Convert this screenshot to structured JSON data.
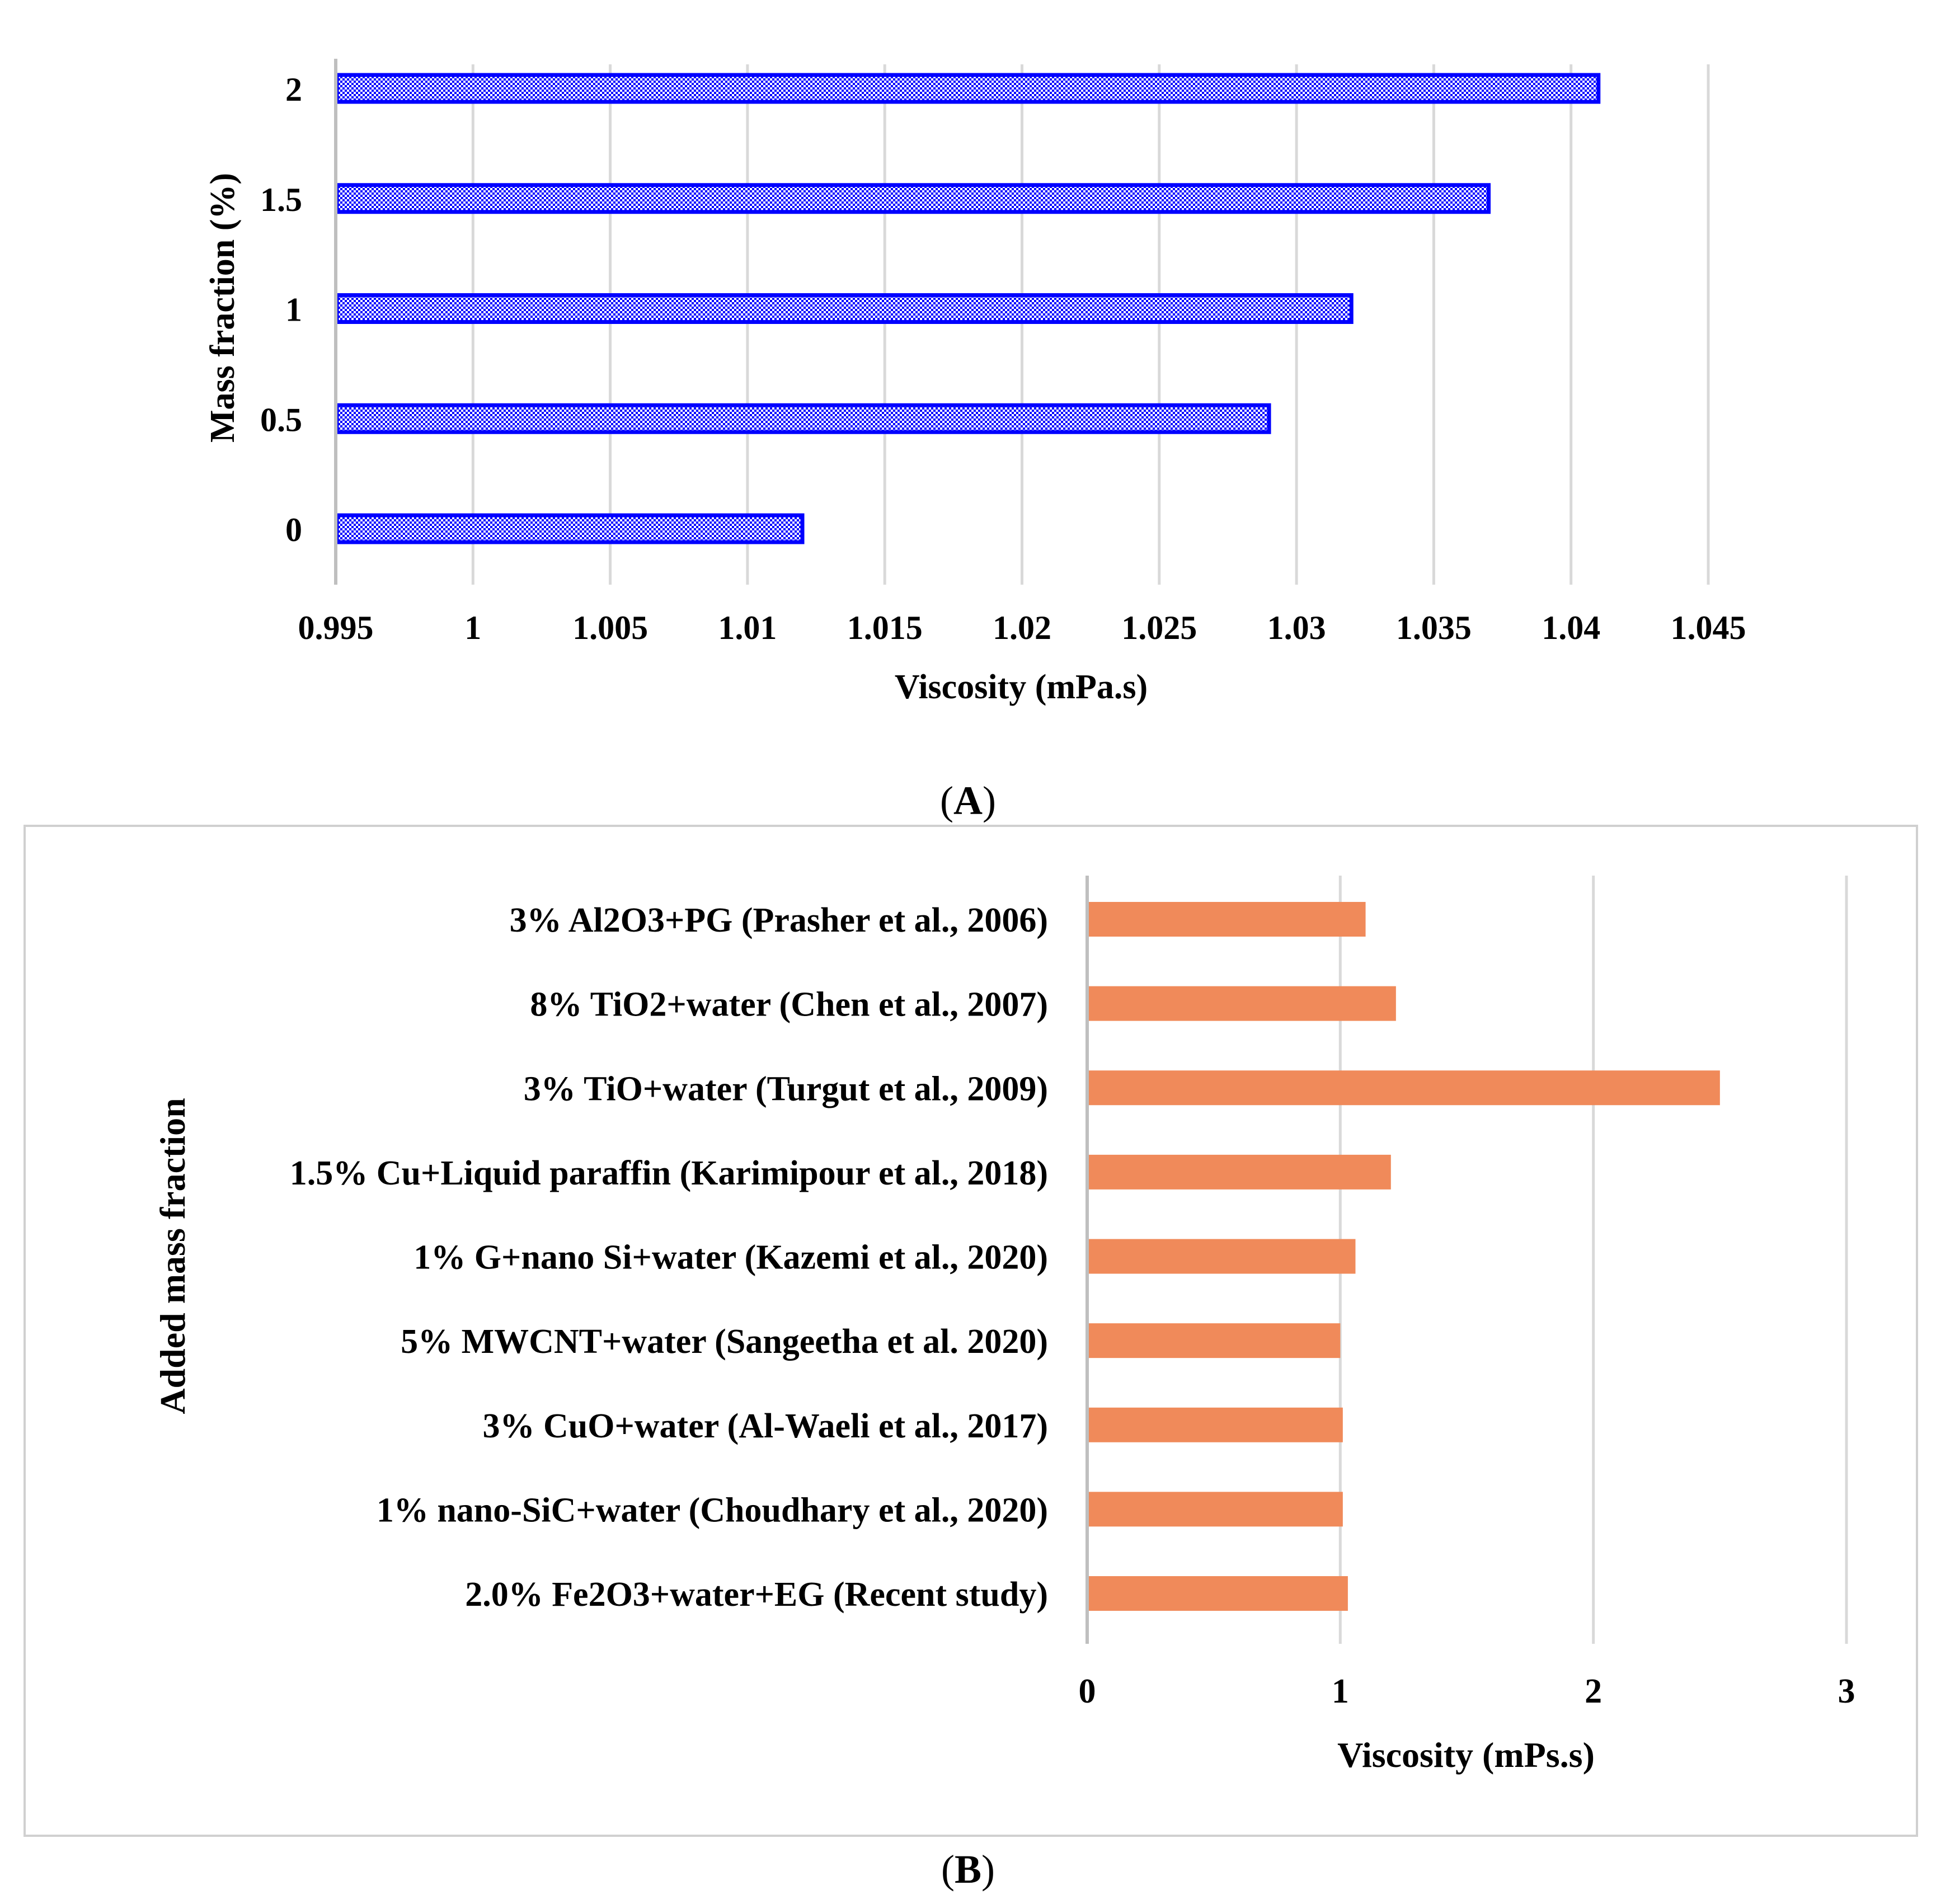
{
  "chart_data": [
    {
      "panel": "A",
      "type": "bar",
      "orientation": "horizontal",
      "categories": [
        "0",
        "0.5",
        "1",
        "1.5",
        "2"
      ],
      "values": [
        1.012,
        1.029,
        1.032,
        1.037,
        1.041
      ],
      "xlabel": "Viscosity (mPa.s)",
      "ylabel": "Mass fraction (%)",
      "xlim": [
        0.995,
        1.045
      ],
      "xticks": [
        "0.995",
        "1",
        "1.005",
        "1.01",
        "1.015",
        "1.02",
        "1.025",
        "1.03",
        "1.035",
        "1.04",
        "1.045"
      ],
      "grid": true,
      "bar_fill": "#ffffff",
      "bar_pattern": "#0000ff",
      "bar_stroke": "#0000ff",
      "caption_open": "(",
      "caption_letter": "A",
      "caption_close": ")"
    },
    {
      "panel": "B",
      "type": "bar",
      "orientation": "horizontal",
      "categories": [
        "2.0% Fe2O3+water+EG (Recent study)",
        "1% nano-SiC+water (Choudhary et al., 2020)",
        "3% CuO+water (Al-Waeli et al., 2017)",
        "5% MWCNT+water (Sangeetha et al. 2020)",
        "1% G+nano Si+water (Kazemi et al., 2020)",
        "1.5% Cu+Liquid paraffin (Karimipour et al., 2018)",
        "3% TiO+water (Turgut et al., 2009)",
        "8% TiO2+water (Chen et al., 2007)",
        "3% Al2O3+PG (Prasher et al., 2006)"
      ],
      "values": [
        1.03,
        1.01,
        1.01,
        1.0,
        1.06,
        1.2,
        2.5,
        1.22,
        1.1
      ],
      "xlabel": "Viscosity (mPs.s)",
      "ylabel": "Added mass fraction",
      "xlim": [
        0,
        3
      ],
      "xticks": [
        "0",
        "1",
        "2",
        "3"
      ],
      "grid": true,
      "bar_color": "#f08a5a",
      "caption_open": "(",
      "caption_letter": "B",
      "caption_close": ")"
    }
  ]
}
